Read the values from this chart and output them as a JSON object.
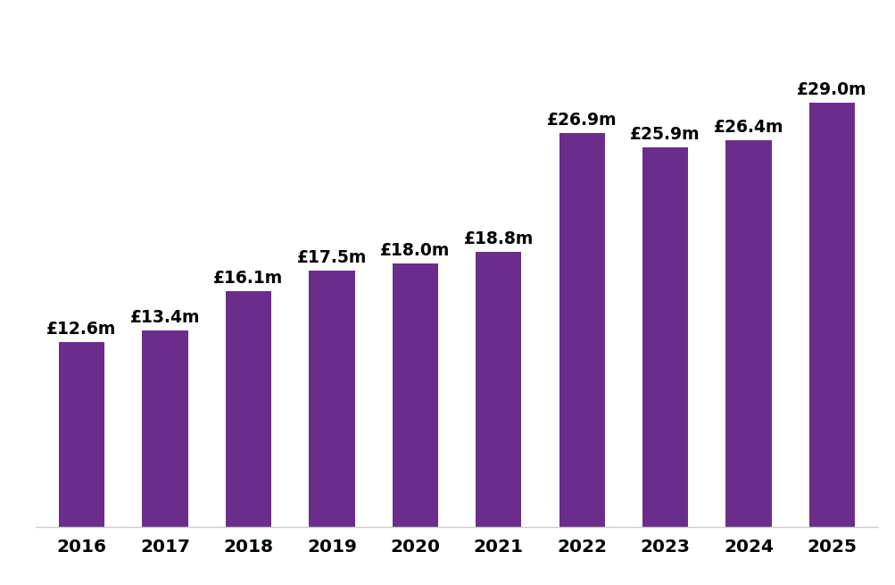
{
  "categories": [
    "2016",
    "2017",
    "2018",
    "2019",
    "2020",
    "2021",
    "2022",
    "2023",
    "2024",
    "2025"
  ],
  "values": [
    12.6,
    13.4,
    16.1,
    17.5,
    18.0,
    18.8,
    26.9,
    25.9,
    26.4,
    29.0
  ],
  "labels": [
    "£12.6m",
    "£13.4m",
    "£16.1m",
    "£17.5m",
    "£18.0m",
    "£18.8m",
    "£26.9m",
    "£25.9m",
    "£26.4m",
    "£29.0m"
  ],
  "bar_color": "#6B2D8B",
  "background_color": "#ffffff",
  "ylim": [
    0,
    34
  ],
  "label_fontsize": 13.5,
  "tick_fontsize": 14.5,
  "label_fontweight": "bold",
  "tick_fontweight": "bold",
  "bar_width": 0.55
}
